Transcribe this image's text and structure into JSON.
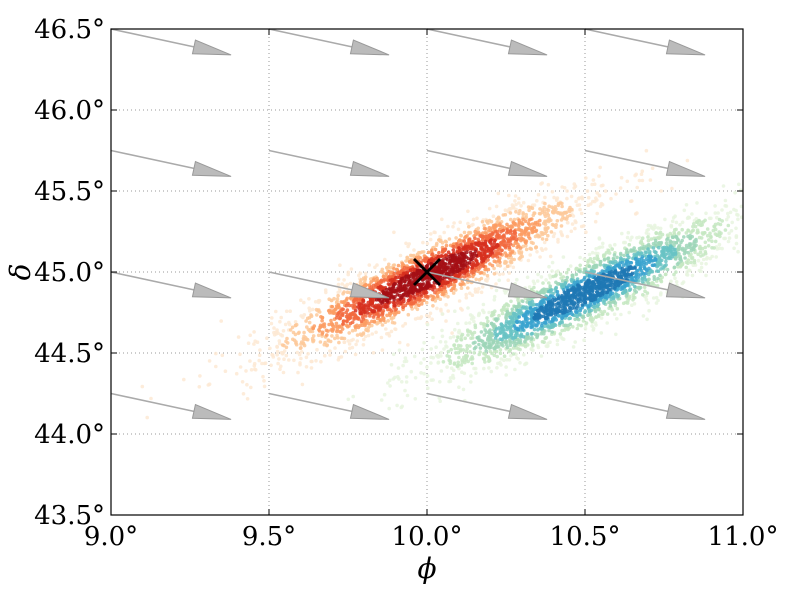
{
  "chart_data": {
    "type": "scatter",
    "title": "",
    "xlabel": "ϕ",
    "ylabel": "δ",
    "xlim": [
      9.0,
      11.0
    ],
    "ylim": [
      43.5,
      46.5
    ],
    "grid": true,
    "xticks": [
      9.0,
      9.5,
      10.0,
      10.5,
      11.0
    ],
    "xtick_labels": [
      "9.0°",
      "9.5°",
      "10.0°",
      "10.5°",
      "11.0°"
    ],
    "yticks": [
      43.5,
      44.0,
      44.5,
      45.0,
      45.5,
      46.0,
      46.5
    ],
    "ytick_labels": [
      "43.5°",
      "44.0°",
      "44.5°",
      "45.0°",
      "45.5°",
      "46.0°",
      "46.5°"
    ],
    "clouds": [
      {
        "colormap": "orange-red",
        "colors": [
          "#fde9d3",
          "#fdc99a",
          "#fc9c63",
          "#f26a3f",
          "#d7301f",
          "#a50f15"
        ],
        "center": [
          10.0,
          44.97
        ],
        "direction": [
          1.0,
          1.0
        ],
        "major_sd": 0.33,
        "minor_sd": 0.075
      },
      {
        "colormap": "green-blue",
        "colors": [
          "#e7f5df",
          "#c5e8c2",
          "#9dd6b8",
          "#68c3c4",
          "#3aa3cf",
          "#1f78b4"
        ],
        "center": [
          10.5,
          44.87
        ],
        "direction": [
          1.0,
          1.0
        ],
        "major_sd": 0.33,
        "minor_sd": 0.075
      }
    ],
    "marker": {
      "symbol": "x",
      "x": 10.0,
      "y": 45.0,
      "color": "#000000"
    },
    "arrows": {
      "color": "#aaaaaa",
      "dx": 0.38,
      "dy": -0.16,
      "start_x": [
        9.0,
        9.5,
        10.0,
        10.5
      ],
      "start_y": [
        46.5,
        45.75,
        45.0,
        44.25
      ]
    }
  }
}
